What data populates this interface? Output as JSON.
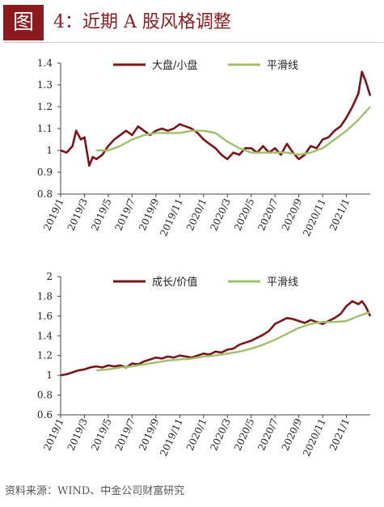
{
  "header": {
    "figure_tag": "图",
    "title": "4：近期 A 股风格调整"
  },
  "source_note": "资料来源：WIND、中金公司财富研究",
  "colors": {
    "series_dark": "#7b1416",
    "series_smooth": "#9dc16a",
    "accent": "#8b1a1f"
  },
  "chart_data": [
    {
      "type": "line",
      "title": "",
      "xlabel": "",
      "ylabel": "",
      "x_tick_labels": [
        "2019/1",
        "2019/3",
        "2019/5",
        "2019/7",
        "2019/9",
        "2019/11",
        "2020/1",
        "2020/3",
        "2020/5",
        "2020/7",
        "2020/9",
        "2020/11",
        "2021/1"
      ],
      "y_tick_labels": [
        "0.8",
        "0.9",
        "1",
        "1.1",
        "1.2",
        "1.3",
        "1.4"
      ],
      "ylim": [
        0.8,
        1.4
      ],
      "xlim": [
        "2019/1",
        "2021/3"
      ],
      "grid": false,
      "legend_position": "top",
      "series": [
        {
          "name": "大盘/小盘",
          "color": "#7b1416",
          "x": [
            "2019/1",
            "2019/1.5",
            "2019/2",
            "2019/2.3",
            "2019/2.7",
            "2019/3",
            "2019/3.4",
            "2019/3.7",
            "2019/4",
            "2019/4.5",
            "2019/5",
            "2019/5.5",
            "2019/6",
            "2019/6.5",
            "2019/7",
            "2019/7.5",
            "2019/8",
            "2019/8.5",
            "2019/9",
            "2019/9.5",
            "2019/10",
            "2019/10.5",
            "2019/11",
            "2019/11.5",
            "2019/12",
            "2019/12.5",
            "2020/1",
            "2020/1.5",
            "2020/2",
            "2020/2.5",
            "2020/3",
            "2020/3.5",
            "2020/4",
            "2020/4.5",
            "2020/5",
            "2020/5.5",
            "2020/6",
            "2020/6.5",
            "2020/7",
            "2020/7.5",
            "2020/8",
            "2020/8.5",
            "2020/9",
            "2020/9.5",
            "2020/10",
            "2020/10.5",
            "2020/11",
            "2020/11.5",
            "2020/12",
            "2020/12.5",
            "2021/1",
            "2021/1.5",
            "2021/2",
            "2021/2.3",
            "2021/2.6",
            "2021/3"
          ],
          "values": [
            1.0,
            0.99,
            1.02,
            1.09,
            1.05,
            1.06,
            0.93,
            0.97,
            0.96,
            0.98,
            1.02,
            1.05,
            1.07,
            1.09,
            1.07,
            1.11,
            1.09,
            1.07,
            1.09,
            1.1,
            1.09,
            1.1,
            1.12,
            1.11,
            1.1,
            1.08,
            1.05,
            1.03,
            1.01,
            0.98,
            0.96,
            0.99,
            0.98,
            1.01,
            1.01,
            0.99,
            1.02,
            0.99,
            1.01,
            0.98,
            1.03,
            0.99,
            0.96,
            0.98,
            1.02,
            1.01,
            1.05,
            1.06,
            1.09,
            1.11,
            1.15,
            1.2,
            1.26,
            1.36,
            1.32,
            1.25
          ]
        },
        {
          "name": "平滑线",
          "color": "#9dc16a",
          "x": [
            "2019/4",
            "2019/5",
            "2019/6",
            "2019/7",
            "2019/8",
            "2019/9",
            "2019/10",
            "2019/11",
            "2019/12",
            "2020/1",
            "2020/2",
            "2020/3",
            "2020/4",
            "2020/5",
            "2020/6",
            "2020/7",
            "2020/8",
            "2020/9",
            "2020/10",
            "2020/11",
            "2020/12",
            "2021/1",
            "2021/2",
            "2021/3"
          ],
          "values": [
            1.0,
            1.0,
            1.02,
            1.05,
            1.07,
            1.08,
            1.08,
            1.08,
            1.09,
            1.09,
            1.08,
            1.04,
            1.01,
            0.99,
            0.99,
            0.99,
            0.99,
            0.98,
            0.99,
            1.01,
            1.05,
            1.09,
            1.14,
            1.2
          ]
        }
      ]
    },
    {
      "type": "line",
      "title": "",
      "xlabel": "",
      "ylabel": "",
      "x_tick_labels": [
        "2019/1",
        "2019/3",
        "2019/5",
        "2019/7",
        "2019/9",
        "2019/11",
        "2020/1",
        "2020/3",
        "2020/5",
        "2020/7",
        "2020/9",
        "2020/11",
        "2021/1"
      ],
      "y_tick_labels": [
        "0.6",
        "0.8",
        "1",
        "1.2",
        "1.4",
        "1.6",
        "1.8",
        "2"
      ],
      "ylim": [
        0.6,
        2.0
      ],
      "xlim": [
        "2019/1",
        "2021/3"
      ],
      "grid": false,
      "legend_position": "top",
      "series": [
        {
          "name": "成长/价值",
          "color": "#7b1416",
          "x": [
            "2019/1",
            "2019/1.5",
            "2019/2",
            "2019/2.5",
            "2019/3",
            "2019/3.5",
            "2019/4",
            "2019/4.5",
            "2019/5",
            "2019/5.5",
            "2019/6",
            "2019/6.5",
            "2019/7",
            "2019/7.5",
            "2019/8",
            "2019/8.5",
            "2019/9",
            "2019/9.5",
            "2019/10",
            "2019/10.5",
            "2019/11",
            "2019/11.5",
            "2019/12",
            "2019/12.5",
            "2020/1",
            "2020/1.5",
            "2020/2",
            "2020/2.5",
            "2020/3",
            "2020/3.5",
            "2020/4",
            "2020/4.5",
            "2020/5",
            "2020/5.5",
            "2020/6",
            "2020/6.5",
            "2020/7",
            "2020/7.5",
            "2020/8",
            "2020/8.5",
            "2020/9",
            "2020/9.5",
            "2020/10",
            "2020/10.5",
            "2020/11",
            "2020/11.5",
            "2020/12",
            "2020/12.5",
            "2021/1",
            "2021/1.5",
            "2021/2",
            "2021/2.3",
            "2021/2.6",
            "2021/3"
          ],
          "values": [
            1.0,
            1.01,
            1.03,
            1.05,
            1.06,
            1.08,
            1.09,
            1.08,
            1.1,
            1.09,
            1.1,
            1.08,
            1.12,
            1.11,
            1.14,
            1.16,
            1.18,
            1.17,
            1.19,
            1.18,
            1.2,
            1.19,
            1.18,
            1.2,
            1.22,
            1.21,
            1.24,
            1.23,
            1.26,
            1.27,
            1.31,
            1.33,
            1.35,
            1.38,
            1.41,
            1.45,
            1.52,
            1.55,
            1.58,
            1.57,
            1.55,
            1.53,
            1.56,
            1.54,
            1.52,
            1.55,
            1.58,
            1.62,
            1.7,
            1.75,
            1.72,
            1.75,
            1.7,
            1.6
          ]
        },
        {
          "name": "平滑线",
          "color": "#9dc16a",
          "x": [
            "2019/4",
            "2019/5",
            "2019/6",
            "2019/7",
            "2019/8",
            "2019/9",
            "2019/10",
            "2019/11",
            "2019/12",
            "2020/1",
            "2020/2",
            "2020/3",
            "2020/4",
            "2020/5",
            "2020/6",
            "2020/7",
            "2020/8",
            "2020/9",
            "2020/10",
            "2020/11",
            "2020/12",
            "2021/1",
            "2021/2",
            "2021/3"
          ],
          "values": [
            1.05,
            1.06,
            1.08,
            1.09,
            1.11,
            1.13,
            1.15,
            1.16,
            1.17,
            1.19,
            1.2,
            1.22,
            1.24,
            1.27,
            1.31,
            1.36,
            1.42,
            1.48,
            1.52,
            1.54,
            1.54,
            1.55,
            1.6,
            1.64
          ]
        }
      ]
    }
  ]
}
